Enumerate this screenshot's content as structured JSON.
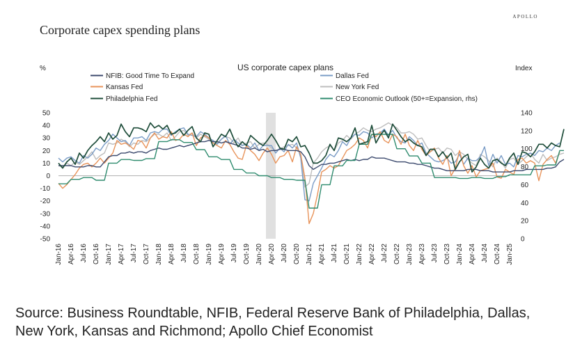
{
  "brand": "APOLLO",
  "page_title": "Corporate capex spending plans",
  "source": "Source: Business Roundtable, NFIB, Federal Reserve Bank of Philadelphia, Dallas, New York, Kansas and Richmond; Apollo Chief Economist",
  "chart_data": {
    "type": "line",
    "title": "US corporate capex plans",
    "y_left_unit": "%",
    "y_right_unit": "Index",
    "y_left_ticks": [
      "50",
      "40",
      "30",
      "20",
      "10",
      "0",
      "-10",
      "-20",
      "-30",
      "-40",
      "-50"
    ],
    "y_right_ticks": [
      "140",
      "120",
      "100",
      "80",
      "60",
      "40",
      "20",
      "0"
    ],
    "ylim_left": [
      -50,
      50
    ],
    "ylim_right": [
      0,
      140
    ],
    "x_start": "Jan-16",
    "x_end": "Jan-25",
    "x_tick_labels": [
      "Jan-16",
      "Apr-16",
      "Jul-16",
      "Oct-16",
      "Jan-17",
      "Apr-17",
      "Jul-17",
      "Oct-17",
      "Jan-18",
      "Apr-18",
      "Jul-18",
      "Oct-18",
      "Jan-19",
      "Apr-19",
      "Jul-19",
      "Oct-19",
      "Jan-20",
      "Apr-20",
      "Jul-20",
      "Oct-20",
      "Jan-21",
      "Apr-21",
      "Jul-21",
      "Oct-21",
      "Jan-22",
      "Apr-22",
      "Jul-22",
      "Oct-22",
      "Jan-23",
      "Apr-23",
      "Jul-23",
      "Oct-23",
      "Jan-24",
      "Apr-24",
      "Jul-24",
      "Oct-24",
      "Jan-25"
    ],
    "shaded_period": [
      "Mar-20",
      "May-20"
    ],
    "colors": {
      "nfib": "#3c4a6e",
      "dallas": "#7a9cc6",
      "kansas": "#e8935a",
      "newyork": "#bdbdbd",
      "philly": "#1e4d3a",
      "ceo": "#2e8b6e",
      "shade": "#e0e0e0"
    },
    "legend": [
      {
        "key": "nfib",
        "label": "NFIB: Good Time To Expand"
      },
      {
        "key": "dallas",
        "label": "Dallas Fed"
      },
      {
        "key": "kansas",
        "label": "Kansas Fed"
      },
      {
        "key": "newyork",
        "label": "New York Fed"
      },
      {
        "key": "philly",
        "label": "Philadelphia Fed"
      },
      {
        "key": "ceo",
        "label": "CEO Economic Outlook (50+=Expansion, rhs)"
      }
    ],
    "series": [
      {
        "key": "philly",
        "axis": "left",
        "label": "Philadelphia Fed",
        "values": [
          10,
          6,
          11,
          14,
          9,
          18,
          14,
          20,
          24,
          27,
          31,
          27,
          34,
          29,
          32,
          41,
          35,
          31,
          38,
          38,
          37,
          35,
          42,
          38,
          40,
          37,
          40,
          33,
          34,
          37,
          32,
          36,
          39,
          30,
          27,
          34,
          33,
          23,
          28,
          33,
          31,
          37,
          29,
          23,
          27,
          24,
          32,
          29,
          26,
          24,
          28,
          33,
          28,
          22,
          21,
          29,
          27,
          31,
          23,
          24,
          18,
          10,
          10,
          12,
          16,
          25,
          20,
          30,
          29,
          27,
          30,
          38,
          25,
          26,
          27,
          40,
          26,
          32,
          36,
          30,
          41,
          36,
          31,
          27,
          29,
          26,
          24,
          23,
          16,
          21,
          21,
          15,
          19,
          14,
          18,
          5,
          11,
          15,
          17,
          3,
          7,
          14,
          9,
          6,
          12,
          13,
          10,
          8,
          14,
          18,
          9,
          19,
          18,
          15,
          19,
          25,
          25,
          22,
          26,
          24,
          23,
          37
        ]
      },
      {
        "key": "dallas",
        "axis": "left",
        "label": "Dallas Fed",
        "values": [
          14,
          11,
          14,
          15,
          12,
          10,
          16,
          14,
          17,
          22,
          20,
          25,
          28,
          33,
          30,
          27,
          28,
          24,
          30,
          30,
          31,
          28,
          34,
          35,
          34,
          37,
          37,
          32,
          35,
          37,
          38,
          33,
          32,
          31,
          35,
          33,
          30,
          28,
          25,
          29,
          32,
          25,
          29,
          26,
          24,
          25,
          22,
          26,
          20,
          24,
          24,
          24,
          18,
          22,
          19,
          25,
          22,
          26,
          14,
          -19,
          -20,
          -6,
          0,
          6,
          13,
          17,
          15,
          20,
          27,
          24,
          30,
          33,
          32,
          35,
          34,
          30,
          33,
          34,
          37,
          32,
          36,
          30,
          27,
          26,
          31,
          28,
          24,
          26,
          18,
          15,
          12,
          11,
          12,
          14,
          10,
          11,
          17,
          9,
          14,
          12,
          12,
          15,
          23,
          8,
          17,
          10,
          16,
          9,
          10,
          7,
          16,
          15,
          17,
          18,
          16,
          20,
          19,
          22,
          20,
          24,
          26
        ]
      },
      {
        "key": "kansas",
        "axis": "left",
        "label": "Kansas Fed",
        "values": [
          -6,
          -10,
          -7,
          -3,
          1,
          6,
          9,
          10,
          7,
          10,
          14,
          10,
          14,
          18,
          28,
          25,
          26,
          24,
          21,
          28,
          27,
          22,
          30,
          34,
          29,
          31,
          30,
          35,
          28,
          29,
          33,
          31,
          34,
          24,
          30,
          32,
          30,
          26,
          24,
          22,
          28,
          25,
          19,
          14,
          13,
          24,
          20,
          17,
          12,
          18,
          22,
          17,
          10,
          15,
          16,
          20,
          11,
          23,
          17,
          -2,
          -38,
          -30,
          -15,
          3,
          5,
          8,
          6,
          8,
          14,
          20,
          22,
          25,
          30,
          28,
          22,
          33,
          31,
          35,
          28,
          26,
          33,
          31,
          25,
          33,
          24,
          20,
          28,
          21,
          16,
          19,
          22,
          14,
          9,
          16,
          0,
          6,
          20,
          8,
          2,
          8,
          -1,
          4,
          5,
          6,
          10,
          -1,
          -2,
          5,
          3,
          1,
          13,
          14,
          10,
          12,
          10,
          -4,
          9,
          13,
          16,
          10,
          19
        ]
      },
      {
        "key": "newyork",
        "axis": "left",
        "label": "New York Fed",
        "values": [
          8,
          7,
          10,
          8,
          11,
          9,
          12,
          15,
          19,
          13,
          16,
          18,
          26,
          25,
          26,
          29,
          27,
          23,
          26,
          25,
          28,
          27,
          30,
          33,
          33,
          31,
          34,
          28,
          31,
          35,
          36,
          32,
          34,
          30,
          33,
          31,
          29,
          28,
          26,
          29,
          31,
          30,
          26,
          30,
          24,
          26,
          27,
          22,
          25,
          26,
          25,
          22,
          20,
          21,
          23,
          24,
          25,
          22,
          17,
          -9,
          -6,
          10,
          14,
          19,
          22,
          24,
          20,
          26,
          28,
          32,
          29,
          33,
          35,
          38,
          36,
          35,
          37,
          38,
          40,
          42,
          40,
          38,
          34,
          34,
          35,
          33,
          29,
          30,
          24,
          19,
          21,
          22,
          18,
          22,
          21,
          16,
          19,
          17,
          13,
          10,
          8,
          17,
          15,
          12,
          7,
          14,
          11,
          6,
          13,
          14,
          9,
          12,
          15,
          18,
          13,
          10,
          17,
          12,
          14,
          15,
          17,
          18
        ]
      },
      {
        "key": "nfib",
        "axis": "left",
        "label": "NFIB: Good Time To Expand",
        "values": [
          8,
          8,
          8,
          8,
          7,
          7,
          7,
          8,
          8,
          7,
          7,
          11,
          15,
          16,
          16,
          18,
          18,
          19,
          18,
          19,
          19,
          18,
          20,
          21,
          22,
          21,
          21,
          22,
          23,
          24,
          23,
          24,
          25,
          26,
          27,
          27,
          28,
          27,
          27,
          26,
          27,
          26,
          25,
          24,
          22,
          22,
          21,
          22,
          20,
          21,
          19,
          20,
          20,
          21,
          21,
          20,
          20,
          20,
          19,
          15,
          8,
          5,
          7,
          9,
          9,
          10,
          10,
          11,
          12,
          13,
          12,
          13,
          12,
          13,
          13,
          15,
          14,
          14,
          14,
          13,
          12,
          11,
          11,
          11,
          10,
          10,
          9,
          9,
          8,
          7,
          6,
          6,
          5,
          4,
          4,
          4,
          4,
          4,
          5,
          5,
          5,
          4,
          4,
          4,
          3,
          3,
          3,
          3,
          3,
          4,
          4,
          4,
          5,
          5,
          5,
          5,
          5,
          6,
          6,
          7,
          11,
          13
        ]
      },
      {
        "key": "ceo",
        "axis": "right",
        "label": "CEO Economic Outlook (50+=Expansion, rhs)",
        "values": [
          61,
          61,
          61,
          66,
          66,
          66,
          68,
          68,
          68,
          65,
          65,
          65,
          84,
          84,
          84,
          88,
          88,
          88,
          87,
          87,
          87,
          89,
          89,
          89,
          108,
          108,
          108,
          110,
          110,
          110,
          107,
          107,
          107,
          99,
          99,
          99,
          91,
          91,
          91,
          88,
          88,
          88,
          77,
          77,
          77,
          73,
          73,
          73,
          70,
          70,
          70,
          68,
          68,
          68,
          66,
          66,
          66,
          65,
          65,
          65,
          34,
          34,
          34,
          60,
          60,
          60,
          81,
          81,
          81,
          87,
          87,
          87,
          105,
          105,
          105,
          116,
          116,
          116,
          116,
          116,
          116,
          100,
          100,
          100,
          92,
          92,
          92,
          84,
          84,
          84,
          68,
          68,
          68,
          68,
          68,
          68,
          67,
          67,
          67,
          68,
          68,
          68,
          67,
          67,
          67,
          69,
          69,
          69,
          71,
          71,
          71,
          71,
          71,
          71,
          81,
          81,
          81,
          82,
          82,
          82,
          98,
          98
        ]
      }
    ]
  }
}
